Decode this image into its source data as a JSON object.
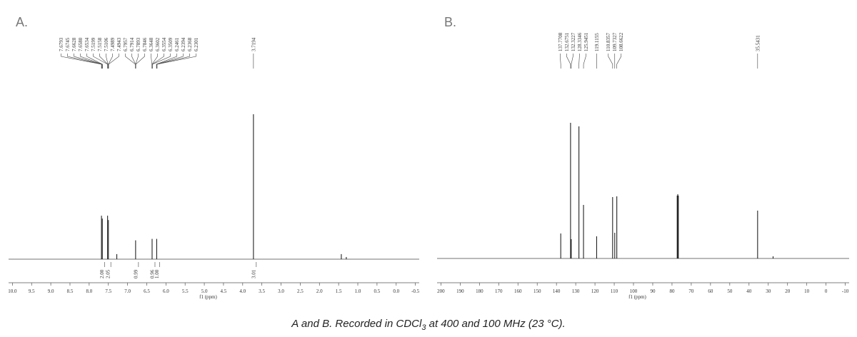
{
  "chart_data": [
    {
      "type": "nmr",
      "panel_label": "A.",
      "xlabel": "f1 (ppm)",
      "xlim": [
        10.1,
        -0.6
      ],
      "ylim": [
        0,
        100
      ],
      "xticks": [
        {
          "value": 10,
          "label": "10.0"
        },
        9.5,
        {
          "value": 9,
          "label": "9.0"
        },
        8.5,
        {
          "value": 8,
          "label": "8.0"
        },
        7.5,
        {
          "value": 7,
          "label": "7.0"
        },
        6.5,
        {
          "value": 6,
          "label": "6.0"
        },
        5.5,
        {
          "value": 5,
          "label": "5.0"
        },
        4.5,
        {
          "value": 4,
          "label": "4.0"
        },
        3.5,
        {
          "value": 3,
          "label": "3.0"
        },
        2.5,
        {
          "value": 2,
          "label": "2.0"
        },
        1.5,
        {
          "value": 1,
          "label": "1.0"
        },
        0.5,
        {
          "value": 0,
          "label": "0.0"
        },
        -0.5
      ],
      "peaks": {
        "x": [
          7.679,
          7.658,
          7.52,
          7.499,
          7.28,
          6.79,
          6.36,
          6.24,
          3.7194,
          1.43,
          1.3
        ],
        "values": [
          30,
          28,
          30,
          27,
          3.5,
          13,
          14,
          14,
          100,
          3.5,
          1.5
        ]
      },
      "shift_labels": [
        {
          "value": 7.6793,
          "label": "7.6793"
        },
        {
          "value": 7.6745,
          "label": "7.6745"
        },
        {
          "value": 7.6628,
          "label": "7.6628"
        },
        {
          "value": 7.658,
          "label": "7.6580"
        },
        {
          "value": 7.6534,
          "label": "7.6534"
        },
        {
          "value": 7.5199,
          "label": "7.5199"
        },
        {
          "value": 7.5158,
          "label": "7.5158"
        },
        {
          "value": 7.5106,
          "label": "7.5106"
        },
        {
          "value": 7.4989,
          "label": "7.4989"
        },
        {
          "value": 7.4943,
          "label": "7.4943"
        },
        {
          "value": 6.7957,
          "label": "6.7957"
        },
        {
          "value": 6.7914,
          "label": "6.7914"
        },
        {
          "value": 6.7893,
          "label": "6.7893"
        },
        {
          "value": 6.7846,
          "label": "6.7846"
        },
        {
          "value": 6.3648,
          "label": "6.3648"
        },
        {
          "value": 6.3602,
          "label": "6.3602"
        },
        {
          "value": 6.3554,
          "label": "6.3554"
        },
        {
          "value": 6.3509,
          "label": "6.3509"
        },
        {
          "value": 6.2461,
          "label": "6.2461"
        },
        {
          "value": 6.2394,
          "label": "6.2394"
        },
        {
          "value": 6.2368,
          "label": "6.2368"
        },
        {
          "value": 6.2301,
          "label": "6.2301"
        },
        {
          "value": 3.7194,
          "label": "3.7194"
        }
      ],
      "integrals": [
        {
          "x": 7.67,
          "label": "2.00"
        },
        {
          "x": 7.51,
          "label": "2.05"
        },
        {
          "x": 6.79,
          "label": "0.99"
        },
        {
          "x": 6.36,
          "label": "0.96"
        },
        {
          "x": 6.24,
          "label": "1.00"
        },
        {
          "x": 3.72,
          "label": "3.01"
        }
      ]
    },
    {
      "type": "nmr",
      "panel_label": "B.",
      "xlabel": "f1 (ppm)",
      "xlim": [
        202,
        -12
      ],
      "ylim": [
        0,
        200
      ],
      "xticks": [
        200,
        190,
        180,
        170,
        160,
        150,
        140,
        130,
        120,
        110,
        100,
        90,
        80,
        70,
        60,
        50,
        40,
        30,
        20,
        10,
        0,
        -10
      ],
      "peaks": {
        "x": [
          137.77,
          132.68,
          132.32,
          128.33,
          125.95,
          119.12,
          110.84,
          109.73,
          108.66,
          77.3,
          77.0,
          76.7,
          35.54,
          27.5
        ],
        "values": [
          35,
          190,
          27,
          185,
          75,
          31,
          86,
          36,
          87,
          88,
          90,
          88,
          67,
          3
        ]
      },
      "shift_labels": [
        {
          "value": 137.7708,
          "label": "137.7708"
        },
        {
          "value": 132.6751,
          "label": "132.6751"
        },
        {
          "value": 132.3227,
          "label": "132.3227"
        },
        {
          "value": 128.3346,
          "label": "128.3346"
        },
        {
          "value": 125.9451,
          "label": "125.9451"
        },
        {
          "value": 119.1155,
          "label": "119.1155"
        },
        {
          "value": 110.8357,
          "label": "110.8357"
        },
        {
          "value": 109.7327,
          "label": "109.7327"
        },
        {
          "value": 108.6622,
          "label": "108.6622"
        },
        {
          "value": 35.5431,
          "label": "35.5431"
        }
      ],
      "integrals": []
    }
  ],
  "caption": [
    "A and B. Recorded in CDCl",
    "3",
    " at 400 and 100 MHz (23 °C)."
  ]
}
